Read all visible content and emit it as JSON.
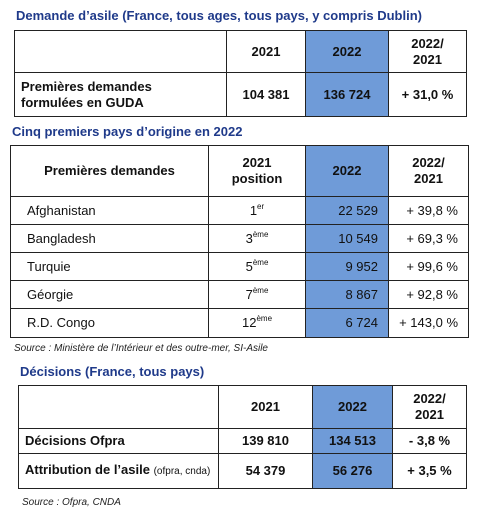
{
  "sections": [
    {
      "title": "Demande d’asile (France, tous ages, tous pays, y compris Dublin)",
      "table": {
        "header": [
          "2021",
          "2022",
          "2022/\n2021"
        ],
        "rows": [
          [
            "Premières demandes\nformulées en GUDA",
            "104 381",
            "136 724",
            "+ 31,0 %"
          ]
        ]
      }
    },
    {
      "title": "Cinq premiers pays d’origine en 2022",
      "table": {
        "header": [
          "Premières demandes",
          "2021\nposition",
          "2022",
          "2022/\n2021"
        ],
        "rows": [
          [
            "Afghanistan",
            {
              "base": "1",
              "sup": "er"
            },
            "22 529",
            "+ 39,8 %"
          ],
          [
            "Bangladesh",
            {
              "base": "3",
              "sup": "ème"
            },
            "10 549",
            "+ 69,3 %"
          ],
          [
            "Turquie",
            {
              "base": "5",
              "sup": "ème"
            },
            "9 952",
            "+ 99,6 %"
          ],
          [
            "Géorgie",
            {
              "base": "7",
              "sup": "ème"
            },
            "8 867",
            "+ 92,8 %"
          ],
          [
            "R.D. Congo",
            {
              "base": "12",
              "sup": "ème"
            },
            "6 724",
            "+ 143,0 %"
          ]
        ]
      },
      "source": "Source : Ministère de l’Intérieur et des outre-mer, SI-Asile"
    },
    {
      "title": "Décisions (France, tous pays)",
      "table": {
        "header": [
          "2021",
          "2022",
          "2022/\n2021"
        ],
        "rows": [
          [
            "Décisions Ofpra",
            "139 810",
            "134 513",
            "- 3,8 %"
          ],
          [
            {
              "main": "Attribution de l’asile",
              "note": "(ofpra, cnda)"
            },
            "54 379",
            "56 276",
            "+ 3,5 %"
          ]
        ]
      },
      "source": "Source : Ofpra, CNDA"
    }
  ]
}
